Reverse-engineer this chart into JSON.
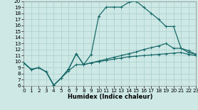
{
  "xlabel": "Humidex (Indice chaleur)",
  "background_color": "#cde8e5",
  "grid_color": "#aacfcc",
  "line_color": "#1a6b6b",
  "xlim": [
    0,
    23
  ],
  "ylim": [
    6,
    20
  ],
  "xticks": [
    0,
    1,
    2,
    3,
    4,
    5,
    6,
    7,
    8,
    9,
    10,
    11,
    12,
    13,
    14,
    15,
    16,
    17,
    18,
    19,
    20,
    21,
    22,
    23
  ],
  "yticks": [
    6,
    7,
    8,
    9,
    10,
    11,
    12,
    13,
    14,
    15,
    16,
    17,
    18,
    19,
    20
  ],
  "curve1_x": [
    0,
    1,
    2,
    3,
    4,
    5,
    6,
    7,
    8,
    9,
    10,
    11,
    12,
    13,
    14,
    15,
    16,
    17,
    18,
    19,
    20,
    21,
    22,
    23
  ],
  "curve1_y": [
    9.8,
    8.7,
    9.0,
    8.3,
    6.1,
    7.3,
    8.8,
    11.3,
    9.5,
    11.2,
    17.5,
    19.0,
    19.0,
    19.0,
    19.8,
    20.0,
    19.0,
    18.0,
    17.0,
    15.8,
    15.8,
    12.2,
    11.8,
    11.2
  ],
  "curve2_x": [
    0,
    1,
    2,
    3,
    4,
    5,
    6,
    7,
    8,
    9,
    10,
    11,
    12,
    13,
    14,
    15,
    16,
    17,
    18,
    19,
    20,
    21,
    22,
    23
  ],
  "curve2_y": [
    9.8,
    8.7,
    9.0,
    8.3,
    6.1,
    7.3,
    8.8,
    11.3,
    9.5,
    9.8,
    10.1,
    10.4,
    10.7,
    11.0,
    11.3,
    11.6,
    12.0,
    12.3,
    12.6,
    13.0,
    12.2,
    12.2,
    11.5,
    11.2
  ],
  "curve3_x": [
    0,
    1,
    2,
    3,
    4,
    5,
    6,
    7,
    8,
    9,
    10,
    11,
    12,
    13,
    14,
    15,
    16,
    17,
    18,
    19,
    20,
    21,
    22,
    23
  ],
  "curve3_y": [
    9.8,
    8.7,
    9.0,
    8.3,
    6.1,
    7.3,
    8.5,
    9.5,
    9.5,
    9.8,
    10.0,
    10.2,
    10.4,
    10.6,
    10.8,
    10.9,
    11.0,
    11.1,
    11.2,
    11.3,
    11.4,
    11.5,
    11.2,
    11.0
  ],
  "xlabel_fontsize": 6.0,
  "tick_fontsize": 5.2,
  "linewidth": 0.9,
  "marker_size": 3.5
}
